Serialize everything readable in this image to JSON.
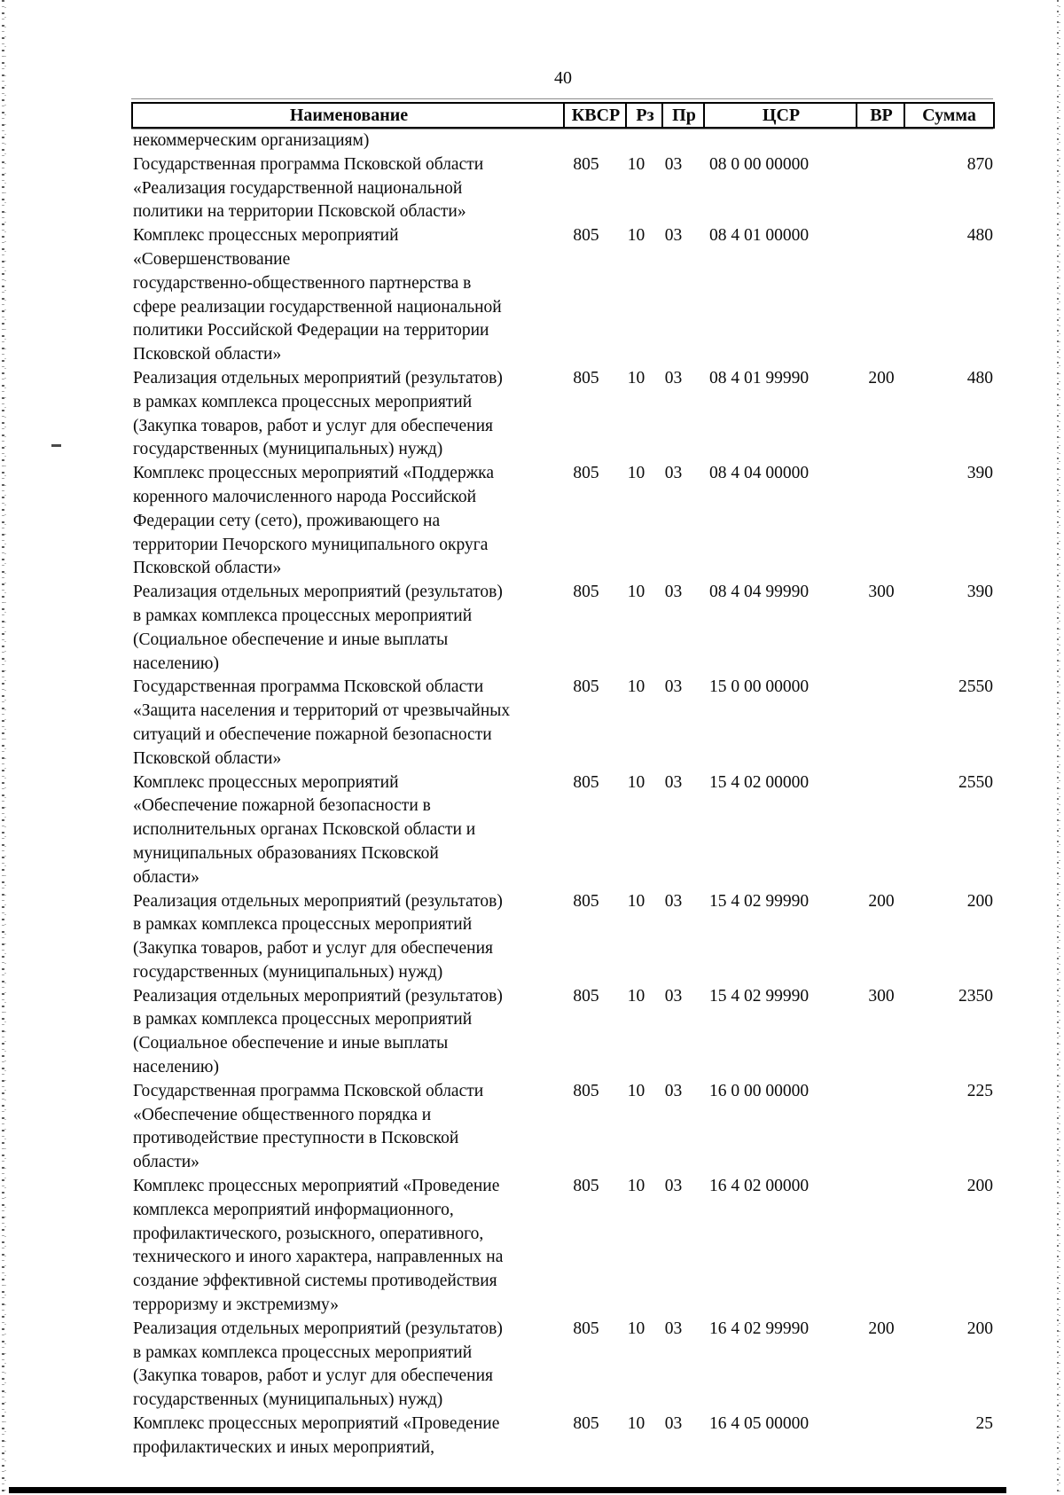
{
  "page": {
    "number": "40"
  },
  "table": {
    "headers": {
      "name": "Наименование",
      "kvsr": "КВСР",
      "rz": "Рз",
      "pr": "Пр",
      "csr": "ЦСР",
      "vr": "ВР",
      "sum": "Сумма"
    },
    "rows": [
      {
        "name": "некоммерческим организациям)",
        "kvsr": "",
        "rz": "",
        "pr": "",
        "csr": "",
        "vr": "",
        "sum": ""
      },
      {
        "name": "Государственная программа Псковской области\n«Реализация государственной национальной\nполитики на территории Псковской области»",
        "kvsr": "805",
        "rz": "10",
        "pr": "03",
        "csr": "08 0 00 00000",
        "vr": "",
        "sum": "870"
      },
      {
        "name": "Комплекс процессных мероприятий\n«Совершенствование\nгосударственно-общественного партнерства в\nсфере реализации государственной национальной\nполитики Российской Федерации на территории\nПсковской области»",
        "kvsr": "805",
        "rz": "10",
        "pr": "03",
        "csr": "08 4 01 00000",
        "vr": "",
        "sum": "480"
      },
      {
        "name": "Реализация отдельных мероприятий (результатов)\nв рамках комплекса процессных мероприятий\n(Закупка товаров, работ и услуг для обеспечения\nгосударственных (муниципальных) нужд)",
        "kvsr": "805",
        "rz": "10",
        "pr": "03",
        "csr": "08 4 01 99990",
        "vr": "200",
        "sum": "480"
      },
      {
        "name": "Комплекс процессных мероприятий «Поддержка\nкоренного малочисленного народа Российской\nФедерации сету (сето), проживающего на\nтерритории Печорского муниципального округа\nПсковской области»",
        "kvsr": "805",
        "rz": "10",
        "pr": "03",
        "csr": "08 4 04 00000",
        "vr": "",
        "sum": "390"
      },
      {
        "name": "Реализация отдельных мероприятий (результатов)\nв рамках комплекса процессных мероприятий\n(Социальное обеспечение и иные выплаты\nнаселению)",
        "kvsr": "805",
        "rz": "10",
        "pr": "03",
        "csr": "08 4 04 99990",
        "vr": "300",
        "sum": "390"
      },
      {
        "name": "Государственная программа Псковской области\n«Защита населения и территорий от чрезвычайных\nситуаций и обеспечение пожарной безопасности\nПсковской области»",
        "kvsr": "805",
        "rz": "10",
        "pr": "03",
        "csr": "15 0 00 00000",
        "vr": "",
        "sum": "2550"
      },
      {
        "name": "Комплекс процессных мероприятий\n«Обеспечение пожарной безопасности в\nисполнительных органах Псковской области и\nмуниципальных образованиях Псковской\nобласти»",
        "kvsr": "805",
        "rz": "10",
        "pr": "03",
        "csr": "15 4 02 00000",
        "vr": "",
        "sum": "2550"
      },
      {
        "name": "Реализация отдельных мероприятий (результатов)\nв рамках комплекса процессных мероприятий\n(Закупка товаров, работ и услуг для обеспечения\nгосударственных (муниципальных) нужд)",
        "kvsr": "805",
        "rz": "10",
        "pr": "03",
        "csr": "15 4 02 99990",
        "vr": "200",
        "sum": "200"
      },
      {
        "name": "Реализация отдельных мероприятий (результатов)\nв рамках комплекса процессных мероприятий\n(Социальное обеспечение и иные выплаты\nнаселению)",
        "kvsr": "805",
        "rz": "10",
        "pr": "03",
        "csr": "15 4 02 99990",
        "vr": "300",
        "sum": "2350"
      },
      {
        "name": "Государственная программа Псковской области\n«Обеспечение общественного порядка и\nпротиводействие преступности в Псковской\nобласти»",
        "kvsr": "805",
        "rz": "10",
        "pr": "03",
        "csr": "16 0 00 00000",
        "vr": "",
        "sum": "225"
      },
      {
        "name": "Комплекс процессных мероприятий «Проведение\nкомплекса мероприятий информационного,\nпрофилактического, розыскного, оперативного,\nтехнического и иного характера, направленных на\nсоздание эффективной системы противодействия\nтерроризму и экстремизму»",
        "kvsr": "805",
        "rz": "10",
        "pr": "03",
        "csr": "16 4 02 00000",
        "vr": "",
        "sum": "200"
      },
      {
        "name": "Реализация отдельных мероприятий (результатов)\nв рамках комплекса процессных мероприятий\n(Закупка товаров, работ и услуг для обеспечения\nгосударственных (муниципальных) нужд)",
        "kvsr": "805",
        "rz": "10",
        "pr": "03",
        "csr": "16 4 02 99990",
        "vr": "200",
        "sum": "200"
      },
      {
        "name": "Комплекс процессных мероприятий «Проведение\nпрофилактических и иных мероприятий,",
        "kvsr": "805",
        "rz": "10",
        "pr": "03",
        "csr": "16 4 05 00000",
        "vr": "",
        "sum": "25"
      }
    ]
  }
}
